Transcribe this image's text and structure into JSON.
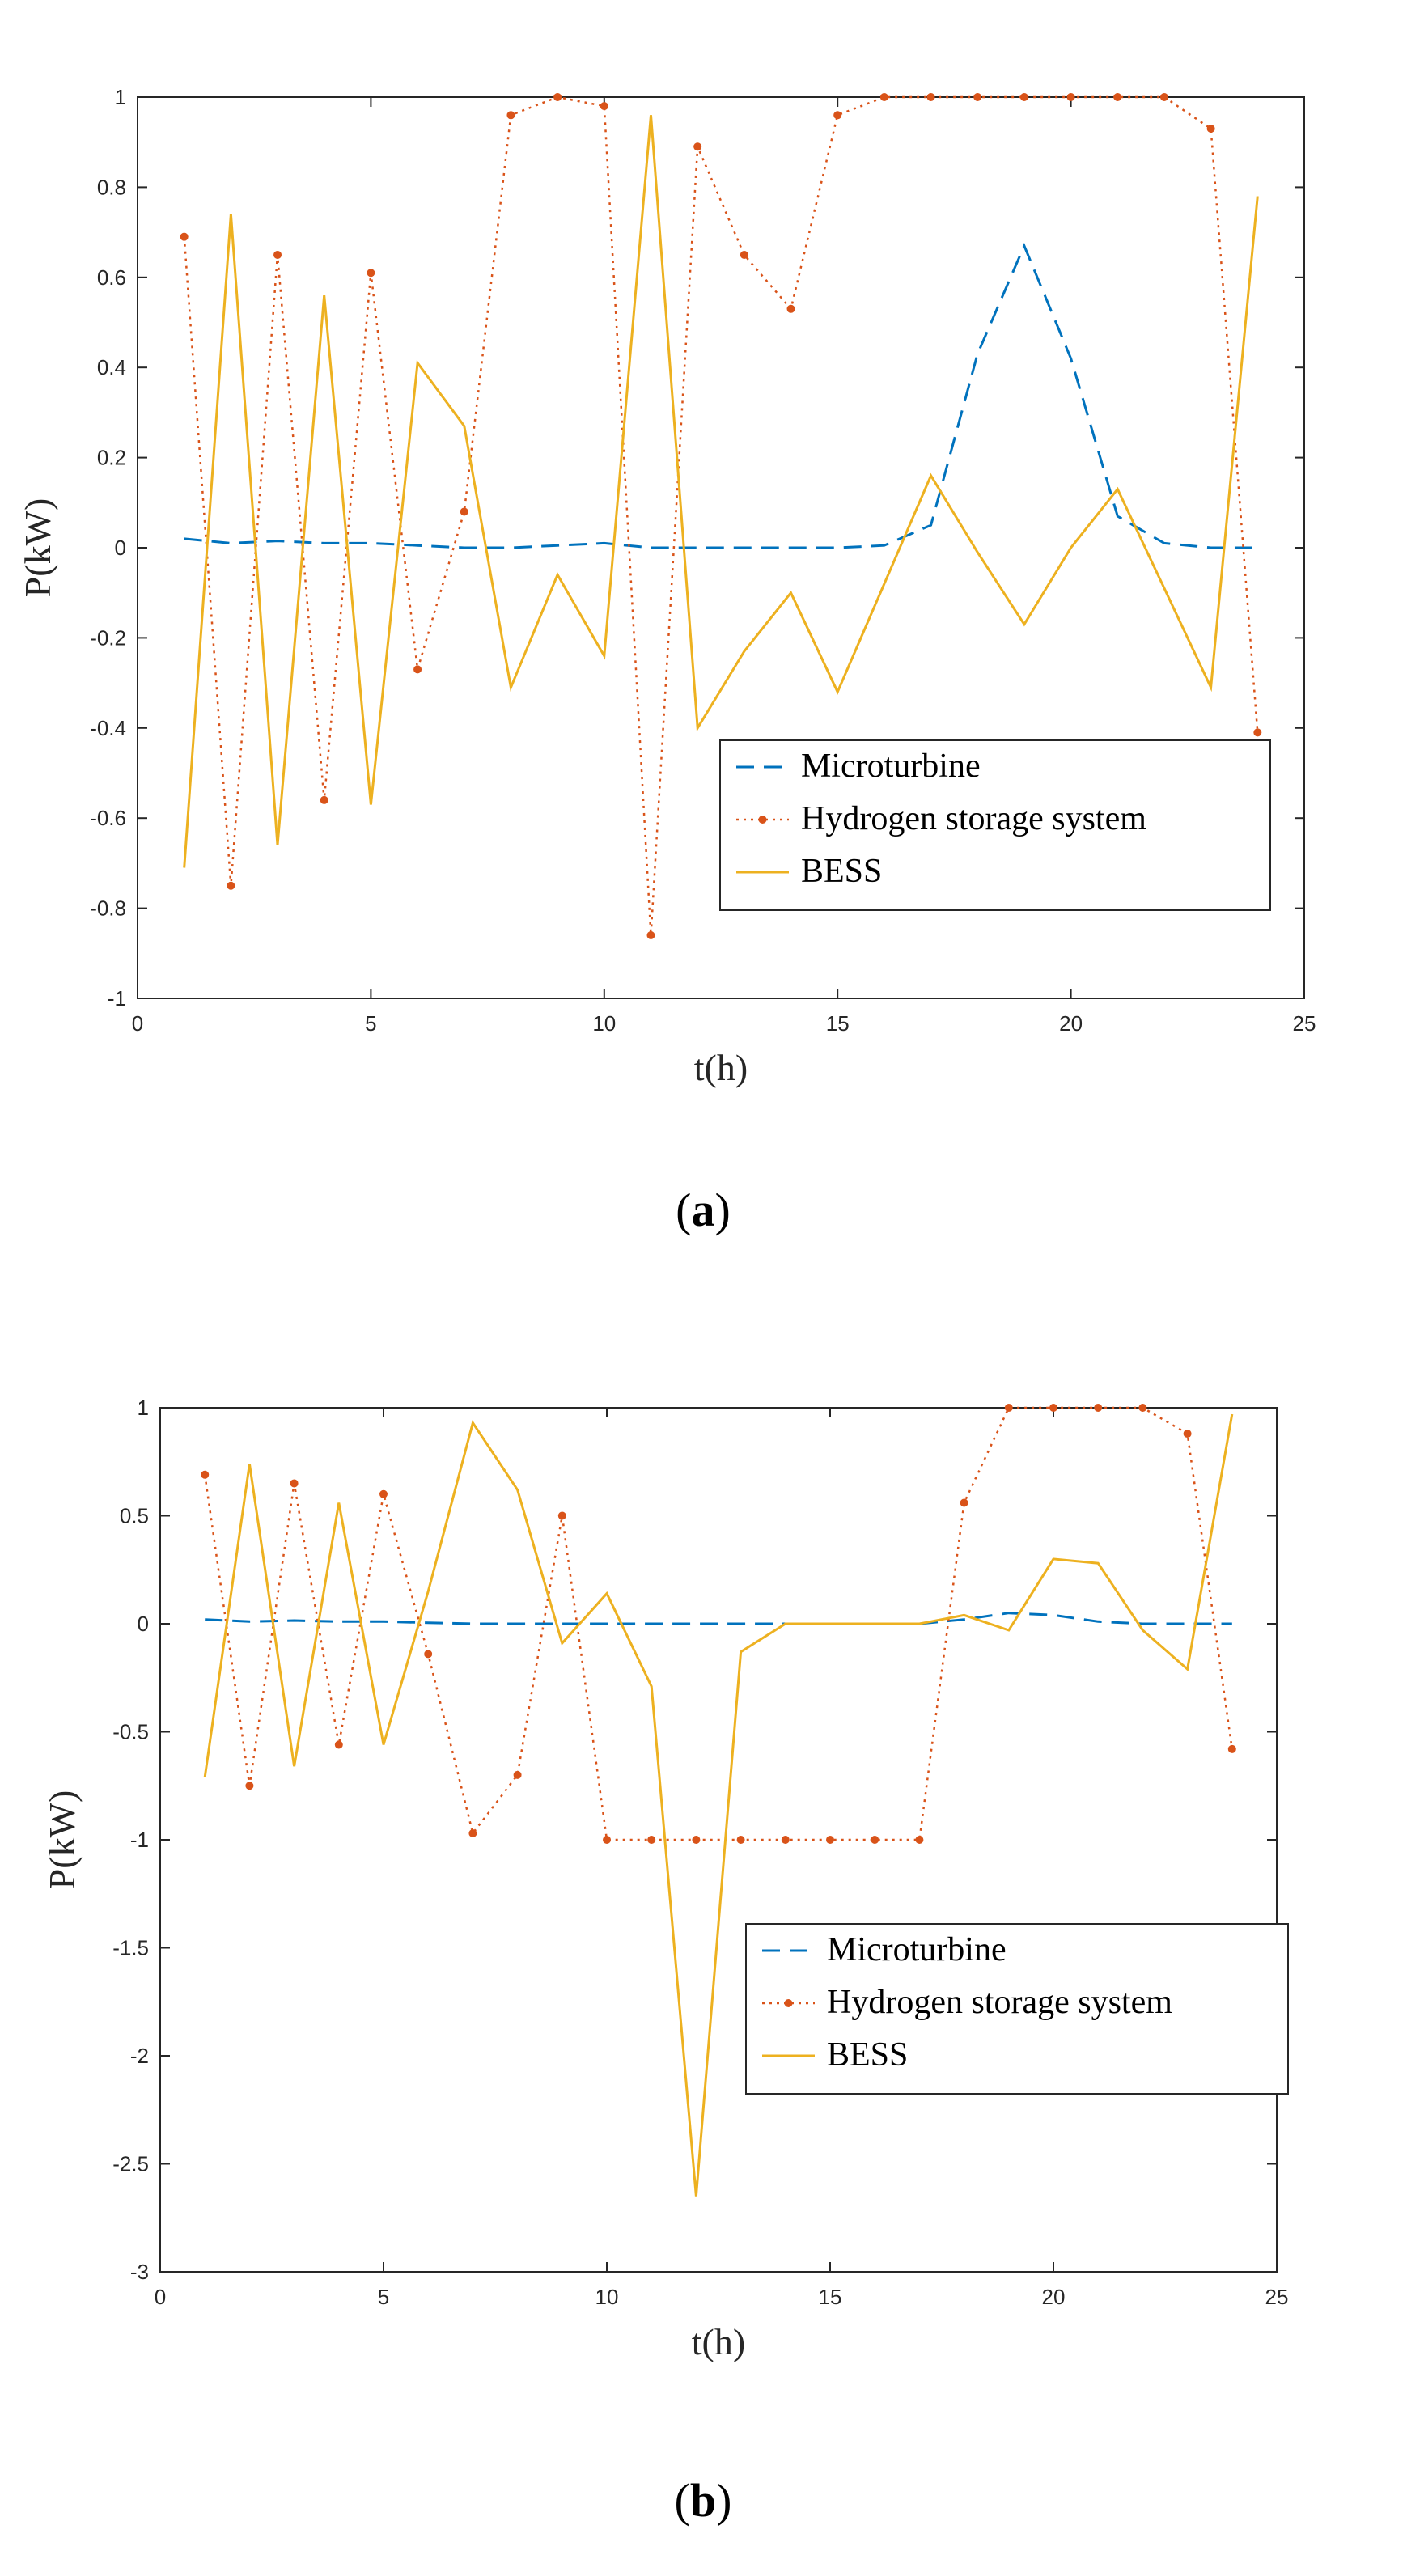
{
  "colors": {
    "microturbine": "#0072BD",
    "hydrogen": "#D95319",
    "bess": "#EDB120",
    "axis": "#262626"
  },
  "chart_data": [
    {
      "type": "line",
      "panel_label": "a",
      "xlabel": "t(h)",
      "ylabel": "P(kW)",
      "xlim": [
        0,
        25
      ],
      "ylim": [
        -1,
        1
      ],
      "xticks": [
        0,
        5,
        10,
        15,
        20,
        25
      ],
      "yticks": [
        -1,
        -0.8,
        -0.6,
        -0.4,
        -0.2,
        0,
        0.2,
        0.4,
        0.6,
        0.8,
        1
      ],
      "ytick_labels": [
        "-1",
        "-0.8",
        "-0.6",
        "-0.4",
        "-0.2",
        "0",
        "0.2",
        "0.4",
        "0.6",
        "0.8",
        "1"
      ],
      "legend_position": "bottom-right",
      "x": [
        1,
        2,
        3,
        4,
        5,
        6,
        7,
        8,
        9,
        10,
        11,
        12,
        13,
        14,
        15,
        16,
        17,
        18,
        19,
        20,
        21,
        22,
        23,
        24
      ],
      "series": [
        {
          "name": "Microturbine",
          "style": "dashed",
          "color": "#0072BD",
          "values": [
            0.02,
            0.01,
            0.015,
            0.01,
            0.01,
            0.005,
            0,
            0,
            0.005,
            0.01,
            0,
            0,
            0,
            0,
            0,
            0.005,
            0.05,
            0.43,
            0.67,
            0.42,
            0.07,
            0.01,
            0,
            0
          ]
        },
        {
          "name": "Hydrogen storage system",
          "style": "dotted-marker",
          "color": "#D95319",
          "values": [
            0.69,
            -0.75,
            0.65,
            -0.56,
            0.61,
            -0.27,
            0.08,
            0.96,
            1.0,
            0.98,
            -0.86,
            0.89,
            0.65,
            0.53,
            0.96,
            1.0,
            1.0,
            1.0,
            1.0,
            1.0,
            1.0,
            1.0,
            0.93,
            -0.41
          ]
        },
        {
          "name": "BESS",
          "style": "solid",
          "color": "#EDB120",
          "values": [
            -0.71,
            0.74,
            -0.66,
            0.56,
            -0.57,
            0.41,
            0.27,
            -0.31,
            -0.06,
            -0.24,
            0.96,
            -0.4,
            -0.23,
            -0.1,
            -0.32,
            -0.08,
            0.16,
            -0.01,
            -0.17,
            0.0,
            0.13,
            -0.09,
            -0.31,
            0.78
          ]
        }
      ]
    },
    {
      "type": "line",
      "panel_label": "b",
      "xlabel": "t(h)",
      "ylabel": "P(kW)",
      "xlim": [
        0,
        25
      ],
      "ylim": [
        -3,
        1
      ],
      "xticks": [
        0,
        5,
        10,
        15,
        20,
        25
      ],
      "yticks": [
        -3,
        -2.5,
        -2,
        -1.5,
        -1,
        -0.5,
        0,
        0.5,
        1
      ],
      "ytick_labels": [
        "-3",
        "-2.5",
        "-2",
        "-1.5",
        "-1",
        "-0.5",
        "0",
        "0.5",
        "1"
      ],
      "legend_position": "bottom-right",
      "x": [
        1,
        2,
        3,
        4,
        5,
        6,
        7,
        8,
        9,
        10,
        11,
        12,
        13,
        14,
        15,
        16,
        17,
        18,
        19,
        20,
        21,
        22,
        23,
        24
      ],
      "series": [
        {
          "name": "Microturbine",
          "style": "dashed",
          "color": "#0072BD",
          "values": [
            0.02,
            0.01,
            0.015,
            0.01,
            0.01,
            0.005,
            0,
            0,
            0,
            0,
            0,
            0,
            0,
            0,
            0,
            0,
            0,
            0.02,
            0.05,
            0.04,
            0.01,
            0,
            0,
            0
          ]
        },
        {
          "name": "Hydrogen storage system",
          "style": "dotted-marker",
          "color": "#D95319",
          "values": [
            0.69,
            -0.75,
            0.65,
            -0.56,
            0.6,
            -0.14,
            -0.97,
            -0.7,
            0.5,
            -1.0,
            -1.0,
            -1.0,
            -1.0,
            -1.0,
            -1.0,
            -1.0,
            -1.0,
            0.56,
            1.0,
            1.0,
            1.0,
            1.0,
            0.88,
            -0.58
          ]
        },
        {
          "name": "BESS",
          "style": "solid",
          "color": "#EDB120",
          "values": [
            -0.71,
            0.74,
            -0.66,
            0.56,
            -0.56,
            0.15,
            0.93,
            0.62,
            -0.09,
            0.14,
            -0.29,
            -2.65,
            -0.13,
            0.0,
            0.0,
            0.0,
            0.0,
            0.04,
            -0.03,
            0.3,
            0.28,
            -0.03,
            -0.21,
            0.97
          ]
        }
      ]
    }
  ]
}
